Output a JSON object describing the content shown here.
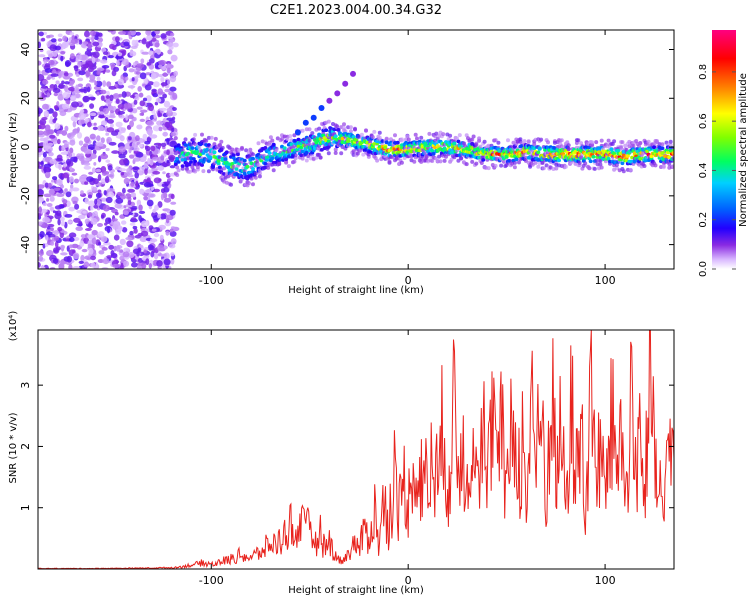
{
  "figure_title": "C2E1.2023.004.00.34.G32",
  "chart_data": [
    {
      "type": "heatmap",
      "title": "C2E1.2023.004.00.34.G32",
      "xlabel": "Height of straight line (km)",
      "ylabel": "Frequency (Hz)",
      "xlim": [
        -188,
        135
      ],
      "ylim": [
        -50,
        48
      ],
      "x_ticks": [
        -100,
        0,
        100
      ],
      "y_ticks": [
        -40,
        -20,
        0,
        20,
        40
      ],
      "grid": false,
      "colorbar": {
        "label": "Normalized spectral amplitude",
        "range": [
          0.0,
          0.97
        ],
        "ticks": [
          0.0,
          0.2,
          0.4,
          0.6,
          0.8
        ],
        "colors": [
          "#ffffff",
          "#d9b8ff",
          "#8a2be2",
          "#2200ff",
          "#0060ff",
          "#00d0ff",
          "#00ff60",
          "#80ff00",
          "#ffff00",
          "#ff8000",
          "#ff0000",
          "#ff0080"
        ]
      },
      "noise_region": {
        "x_range": [
          -188,
          -118
        ],
        "freq_range": [
          -50,
          48
        ],
        "amplitude": 0.1
      },
      "signal_band": {
        "x": [
          -118,
          -110,
          -100,
          -90,
          -80,
          -70,
          -60,
          -50,
          -40,
          -30,
          -20,
          -10,
          0,
          10,
          20,
          30,
          40,
          50,
          60,
          70,
          80,
          90,
          100,
          110,
          120,
          135
        ],
        "center_freq_hz": [
          -4,
          -2,
          -3,
          -8,
          -8,
          -3,
          -1,
          1,
          4,
          3,
          1,
          -1,
          -1,
          0,
          0,
          -1,
          -3,
          -3,
          -2,
          -3,
          -3,
          -3,
          -3,
          -4,
          -3,
          -3
        ],
        "half_width_hz": [
          5,
          5,
          5,
          5,
          5,
          4,
          4,
          4,
          4,
          3,
          3,
          3,
          3,
          3,
          3,
          3,
          3,
          3,
          3,
          3,
          3,
          3,
          3,
          3,
          3,
          3
        ],
        "peak_amplitude": [
          0.45,
          0.5,
          0.5,
          0.55,
          0.5,
          0.5,
          0.6,
          0.6,
          0.65,
          0.7,
          0.65,
          0.85,
          0.85,
          0.7,
          0.75,
          0.75,
          0.8,
          0.85,
          0.8,
          0.85,
          0.85,
          0.9,
          0.85,
          0.9,
          0.85,
          0.9
        ]
      },
      "branch": {
        "x": [
          -56,
          -52,
          -48,
          -44,
          -40,
          -36,
          -32,
          -28
        ],
        "freq_hz": [
          6,
          10,
          12,
          16,
          19,
          22,
          26,
          30
        ]
      }
    },
    {
      "type": "line",
      "xlabel": "Height of straight line (km)",
      "ylabel": "SNR (10 * v/v)",
      "y_multiplier": "(x10⁴)",
      "xlim": [
        -188,
        135
      ],
      "ylim": [
        0,
        3.9
      ],
      "x_ticks": [
        -100,
        0,
        100
      ],
      "y_ticks": [
        1,
        2,
        3
      ],
      "grid": false,
      "series": [
        {
          "color": "#e8231d",
          "x": [
            -188,
            -160,
            -130,
            -118,
            -110,
            -105,
            -100,
            -95,
            -90,
            -85,
            -80,
            -75,
            -70,
            -65,
            -60,
            -57,
            -55,
            -52,
            -50,
            -47,
            -45,
            -42,
            -40,
            -35,
            -30,
            -28,
            -25,
            -22,
            -20,
            -17,
            -15,
            -12,
            -10,
            -7,
            -5,
            -2,
            0,
            3,
            5,
            8,
            10,
            13,
            15,
            18,
            20,
            23,
            25,
            28,
            30,
            33,
            35,
            38,
            40,
            43,
            45,
            48,
            50,
            53,
            55,
            58,
            60,
            63,
            65,
            68,
            70,
            73,
            75,
            78,
            80,
            83,
            85,
            88,
            90,
            93,
            95,
            98,
            100,
            103,
            105,
            108,
            110,
            113,
            115,
            118,
            120,
            123,
            125,
            128,
            130,
            133,
            135
          ],
          "values": [
            0.01,
            0.01,
            0.02,
            0.03,
            0.08,
            0.12,
            0.1,
            0.15,
            0.2,
            0.3,
            0.22,
            0.35,
            0.5,
            0.55,
            0.9,
            0.65,
            1.05,
            0.7,
            0.95,
            0.5,
            0.75,
            0.4,
            0.55,
            0.15,
            0.3,
            0.55,
            0.4,
            0.8,
            0.6,
            1.2,
            0.5,
            1.45,
            0.9,
            2.0,
            1.1,
            1.8,
            1.3,
            2.4,
            1.5,
            2.2,
            1.4,
            2.7,
            1.6,
            3.0,
            1.7,
            3.3,
            1.8,
            3.0,
            1.5,
            3.6,
            2.0,
            3.2,
            1.4,
            3.5,
            2.0,
            2.8,
            1.3,
            3.6,
            1.9,
            2.5,
            1.2,
            3.85,
            2.2,
            3.0,
            1.4,
            3.6,
            2.1,
            2.7,
            1.3,
            3.3,
            1.8,
            3.0,
            1.1,
            3.9,
            2.0,
            2.5,
            1.3,
            3.2,
            2.2,
            2.9,
            1.4,
            3.5,
            1.9,
            3.1,
            1.5,
            3.75,
            2.0,
            1.6,
            1.0,
            3.0,
            1.8
          ]
        }
      ]
    }
  ]
}
